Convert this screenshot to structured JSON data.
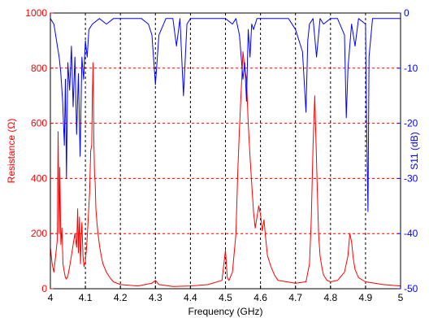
{
  "chart_data": {
    "type": "line",
    "xlabel": "Frequency (GHz)",
    "ylabel_left": "Resistance (Ω)",
    "ylabel_right": "S11 (dB)",
    "xlim": [
      4,
      5
    ],
    "ylim_left": [
      0,
      1000
    ],
    "ylim_right": [
      -50,
      0
    ],
    "x_ticks": [
      "4",
      "4.1",
      "4.2",
      "4.3",
      "4.4",
      "4.5",
      "4.6",
      "4.7",
      "4.8",
      "4.9",
      "5"
    ],
    "y_left_ticks": [
      "0",
      "200",
      "400",
      "600",
      "800",
      "1000"
    ],
    "y_right_ticks": [
      "-50",
      "-40",
      "-30",
      "-20",
      "-10",
      "0"
    ],
    "grid": {
      "vertical": "dashed black at each x tick",
      "horizontal": "dashed red at each left-axis tick"
    },
    "colors": {
      "resistance": "#ff0000",
      "s11": "#0000ff",
      "vertical_grid": "#000000",
      "horizontal_grid": "#ff0000"
    },
    "series": [
      {
        "axis": "left",
        "color": "#ff0000",
        "x": [
          4.0,
          4.005,
          4.01,
          4.015,
          4.02,
          4.022,
          4.025,
          4.027,
          4.03,
          4.033,
          4.036,
          4.04,
          4.043,
          4.046,
          4.05,
          4.055,
          4.06,
          4.065,
          4.07,
          4.075,
          4.078,
          4.08,
          4.083,
          4.086,
          4.088,
          4.09,
          4.093,
          4.096,
          4.1,
          4.104,
          4.108,
          4.112,
          4.115,
          4.118,
          4.12,
          4.122,
          4.124,
          4.126,
          4.128,
          4.13,
          4.133,
          4.136,
          4.14,
          4.145,
          4.15,
          4.16,
          4.17,
          4.18,
          4.2,
          4.25,
          4.29,
          4.3,
          4.31,
          4.35,
          4.4,
          4.45,
          4.49,
          4.5,
          4.505,
          4.51,
          4.52,
          4.53,
          4.535,
          4.54,
          4.545,
          4.55,
          4.555,
          4.56,
          4.565,
          4.57,
          4.575,
          4.58,
          4.585,
          4.59,
          4.595,
          4.6,
          4.605,
          4.61,
          4.615,
          4.62,
          4.63,
          4.64,
          4.65,
          4.7,
          4.73,
          4.74,
          4.745,
          4.75,
          4.755,
          4.76,
          4.763,
          4.766,
          4.77,
          4.775,
          4.78,
          4.79,
          4.8,
          4.82,
          4.84,
          4.85,
          4.855,
          4.86,
          4.865,
          4.87,
          4.88,
          4.9,
          4.95,
          5.0
        ],
        "y": [
          150,
          90,
          60,
          120,
          180,
          570,
          200,
          440,
          160,
          220,
          90,
          60,
          40,
          35,
          45,
          80,
          120,
          160,
          200,
          150,
          290,
          130,
          260,
          90,
          180,
          240,
          120,
          80,
          100,
          160,
          250,
          350,
          500,
          520,
          700,
          820,
          560,
          420,
          380,
          290,
          240,
          200,
          160,
          120,
          90,
          60,
          40,
          25,
          15,
          10,
          20,
          30,
          15,
          8,
          10,
          15,
          30,
          140,
          40,
          30,
          60,
          200,
          420,
          580,
          720,
          860,
          800,
          760,
          600,
          480,
          380,
          280,
          220,
          260,
          300,
          270,
          210,
          250,
          180,
          120,
          80,
          50,
          30,
          20,
          25,
          90,
          250,
          520,
          700,
          460,
          320,
          200,
          120,
          80,
          50,
          30,
          25,
          30,
          60,
          120,
          200,
          170,
          110,
          70,
          40,
          25,
          15,
          10
        ]
      },
      {
        "axis": "right",
        "color": "#0000ff",
        "x": [
          4.0,
          4.01,
          4.015,
          4.02,
          4.025,
          4.03,
          4.035,
          4.04,
          4.043,
          4.046,
          4.05,
          4.055,
          4.06,
          4.065,
          4.07,
          4.075,
          4.08,
          4.085,
          4.09,
          4.095,
          4.1,
          4.105,
          4.11,
          4.12,
          4.14,
          4.16,
          4.18,
          4.2,
          4.22,
          4.24,
          4.26,
          4.28,
          4.29,
          4.3,
          4.31,
          4.33,
          4.35,
          4.36,
          4.37,
          4.38,
          4.39,
          4.4,
          4.42,
          4.45,
          4.48,
          4.5,
          4.52,
          4.53,
          4.54,
          4.55,
          4.555,
          4.56,
          4.565,
          4.57,
          4.575,
          4.58,
          4.59,
          4.6,
          4.62,
          4.65,
          4.68,
          4.7,
          4.72,
          4.73,
          4.735,
          4.74,
          4.75,
          4.76,
          4.77,
          4.78,
          4.8,
          4.82,
          4.84,
          4.845,
          4.85,
          4.86,
          4.87,
          4.88,
          4.9,
          4.903,
          4.907,
          4.91,
          4.92,
          4.94,
          4.96,
          4.98,
          5.0
        ],
        "y": [
          -1,
          -2,
          -4,
          -6,
          -8,
          -11,
          -16,
          -24,
          -12,
          -30,
          -9,
          -14,
          -6,
          -17,
          -8,
          -22,
          -11,
          -26,
          -8,
          -12,
          -5,
          -8,
          -3,
          -2,
          -1,
          -2,
          -1,
          -1,
          -1,
          -1,
          -1,
          -2,
          -4,
          -13,
          -4,
          -1,
          -1,
          -6,
          -1,
          -15,
          -2,
          -1,
          -1,
          -1,
          -1,
          -1,
          -2,
          -1,
          -4,
          -12,
          -9,
          -16,
          -3,
          -8,
          -2,
          -3,
          -1,
          -1,
          -1,
          -1,
          -1,
          -3,
          -7,
          -18,
          -5,
          -2,
          -1,
          -8,
          -1,
          -2,
          -1,
          -1,
          -4,
          -19,
          -10,
          -2,
          -6,
          -1,
          -2,
          -20,
          -36,
          -8,
          -1,
          -1,
          -1,
          -1,
          -1
        ]
      }
    ]
  }
}
